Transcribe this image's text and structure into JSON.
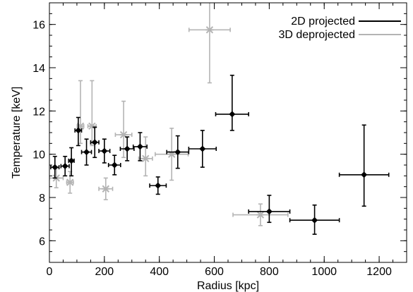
{
  "chart_data": {
    "type": "scatter",
    "xlabel": "Radius [kpc]",
    "ylabel": "Temperature [keV]",
    "xlim": [
      0,
      1300
    ],
    "ylim": [
      5,
      17
    ],
    "x_ticks": [
      0,
      200,
      400,
      600,
      800,
      1000,
      1200
    ],
    "y_ticks": [
      6,
      8,
      10,
      12,
      14,
      16
    ],
    "x_minor_step": 50,
    "y_minor_step": 0.5,
    "grid": false,
    "legend_position": "top-right",
    "series": [
      {
        "name": "2D projected",
        "color": "#000000",
        "marker": "diamond",
        "points": [
          {
            "x": 20,
            "xerr_lo": 15,
            "xerr_hi": 15,
            "y": 9.4,
            "yerr_lo": 0.5,
            "yerr_hi": 0.5
          },
          {
            "x": 57,
            "xerr_lo": 15,
            "xerr_hi": 15,
            "y": 9.45,
            "yerr_lo": 0.45,
            "yerr_hi": 0.45
          },
          {
            "x": 80,
            "xerr_lo": 10,
            "xerr_hi": 10,
            "y": 9.7,
            "yerr_lo": 0.7,
            "yerr_hi": 0.6
          },
          {
            "x": 105,
            "xerr_lo": 12,
            "xerr_hi": 12,
            "y": 11.1,
            "yerr_lo": 0.7,
            "yerr_hi": 0.6
          },
          {
            "x": 135,
            "xerr_lo": 18,
            "xerr_hi": 18,
            "y": 10.1,
            "yerr_lo": 0.6,
            "yerr_hi": 0.6
          },
          {
            "x": 165,
            "xerr_lo": 15,
            "xerr_hi": 15,
            "y": 10.55,
            "yerr_lo": 0.7,
            "yerr_hi": 0.7
          },
          {
            "x": 200,
            "xerr_lo": 20,
            "xerr_hi": 20,
            "y": 10.15,
            "yerr_lo": 0.55,
            "yerr_hi": 0.55
          },
          {
            "x": 237,
            "xerr_lo": 22,
            "xerr_hi": 22,
            "y": 9.5,
            "yerr_lo": 0.45,
            "yerr_hi": 0.45
          },
          {
            "x": 283,
            "xerr_lo": 25,
            "xerr_hi": 25,
            "y": 10.25,
            "yerr_lo": 0.55,
            "yerr_hi": 0.55
          },
          {
            "x": 330,
            "xerr_lo": 25,
            "xerr_hi": 25,
            "y": 10.35,
            "yerr_lo": 0.65,
            "yerr_hi": 0.65
          },
          {
            "x": 395,
            "xerr_lo": 30,
            "xerr_hi": 30,
            "y": 8.55,
            "yerr_lo": 0.4,
            "yerr_hi": 0.4
          },
          {
            "x": 467,
            "xerr_lo": 40,
            "xerr_hi": 40,
            "y": 10.1,
            "yerr_lo": 0.75,
            "yerr_hi": 0.75
          },
          {
            "x": 557,
            "xerr_lo": 50,
            "xerr_hi": 50,
            "y": 10.25,
            "yerr_lo": 0.85,
            "yerr_hi": 0.85
          },
          {
            "x": 665,
            "xerr_lo": 60,
            "xerr_hi": 60,
            "y": 11.85,
            "yerr_lo": 0.75,
            "yerr_hi": 1.8
          },
          {
            "x": 800,
            "xerr_lo": 75,
            "xerr_hi": 75,
            "y": 7.35,
            "yerr_lo": 0.5,
            "yerr_hi": 0.75
          },
          {
            "x": 965,
            "xerr_lo": 90,
            "xerr_hi": 90,
            "y": 6.95,
            "yerr_lo": 0.65,
            "yerr_hi": 0.7
          },
          {
            "x": 1145,
            "xerr_lo": 90,
            "xerr_hi": 90,
            "y": 9.05,
            "yerr_lo": 1.45,
            "yerr_hi": 2.3
          }
        ]
      },
      {
        "name": "3D deprojected",
        "color": "#b4b4b4",
        "marker": "asterisk",
        "points": [
          {
            "x": 25,
            "xerr_lo": 25,
            "xerr_hi": 25,
            "y": 8.9,
            "yerr_lo": 0.45,
            "yerr_hi": 0.45
          },
          {
            "x": 75,
            "xerr_lo": 12,
            "xerr_hi": 12,
            "y": 8.7,
            "yerr_lo": 0.5,
            "yerr_hi": 0.5
          },
          {
            "x": 113,
            "xerr_lo": 12,
            "xerr_hi": 12,
            "y": 11.3,
            "yerr_lo": 0.8,
            "yerr_hi": 2.1
          },
          {
            "x": 155,
            "xerr_lo": 15,
            "xerr_hi": 15,
            "y": 11.3,
            "yerr_lo": 0.9,
            "yerr_hi": 2.1
          },
          {
            "x": 205,
            "xerr_lo": 25,
            "xerr_hi": 25,
            "y": 8.4,
            "yerr_lo": 0.5,
            "yerr_hi": 0.5
          },
          {
            "x": 270,
            "xerr_lo": 30,
            "xerr_hi": 30,
            "y": 10.9,
            "yerr_lo": 1.05,
            "yerr_hi": 1.55
          },
          {
            "x": 350,
            "xerr_lo": 25,
            "xerr_hi": 25,
            "y": 9.8,
            "yerr_lo": 0.8,
            "yerr_hi": 1.0
          },
          {
            "x": 445,
            "xerr_lo": 60,
            "xerr_hi": 60,
            "y": 10.0,
            "yerr_lo": 1.2,
            "yerr_hi": 1.2
          },
          {
            "x": 583,
            "xerr_lo": 75,
            "xerr_hi": 75,
            "y": 15.75,
            "yerr_lo": 2.45,
            "yerr_hi": 1.4
          },
          {
            "x": 768,
            "xerr_lo": 100,
            "xerr_hi": 100,
            "y": 7.2,
            "yerr_lo": 0.5,
            "yerr_hi": 0.5
          }
        ]
      }
    ]
  }
}
